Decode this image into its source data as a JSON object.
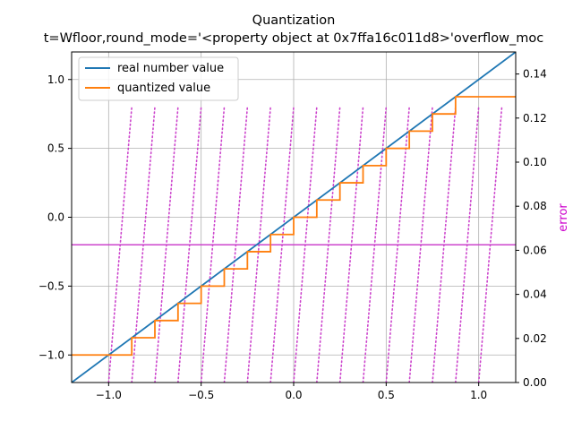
{
  "chart_data": {
    "type": "line",
    "title": "Quantization",
    "subtitle": "t=Wfloor,round_mode='<property object at 0x7ffa16c011d8>'overflow_moc",
    "xlabel": "",
    "ylabel": "",
    "y2label": "error",
    "xlim": [
      -1.2,
      1.2
    ],
    "ylim": [
      -1.2,
      1.2
    ],
    "y2lim": [
      0.0,
      0.15
    ],
    "x_ticks": [
      "−1.0",
      "−0.5",
      "0.0",
      "0.5",
      "1.0"
    ],
    "y_ticks": [
      "−1.0",
      "−0.5",
      "0.0",
      "0.5",
      "1.0"
    ],
    "y2_ticks": [
      "0.00",
      "0.02",
      "0.04",
      "0.06",
      "0.08",
      "0.10",
      "0.12",
      "0.14"
    ],
    "grid": true,
    "legend_position": "top-left",
    "series": [
      {
        "name": "real number value",
        "color": "#1f77b4",
        "style": "solid",
        "axis": "left",
        "x": [
          -1.2,
          1.2
        ],
        "y": [
          -1.2,
          1.2
        ]
      },
      {
        "name": "quantized value",
        "color": "#ff7f0e",
        "style": "step",
        "axis": "left",
        "step_size": 0.125,
        "y_min": -1.0,
        "y_max": 0.875
      },
      {
        "name": "",
        "color": "#cc44cc",
        "style": "dotted",
        "axis": "right",
        "teeth": [
          -1.0,
          -0.875,
          -0.75,
          -0.625,
          -0.5,
          -0.375,
          -0.25,
          -0.125,
          0.0,
          0.125,
          0.25,
          0.375,
          0.5,
          0.625,
          0.75,
          0.875,
          1.0
        ],
        "tooth_width": 0.125,
        "tooth_top": 0.125
      },
      {
        "name": "",
        "color": "#cc44cc",
        "style": "solid",
        "axis": "right",
        "x": [
          -1.2,
          1.2
        ],
        "y": [
          0.0625,
          0.0625
        ]
      }
    ],
    "colors": {
      "axis_label_color": "#cc00cc",
      "grid_color": "#b0b0b0"
    }
  }
}
